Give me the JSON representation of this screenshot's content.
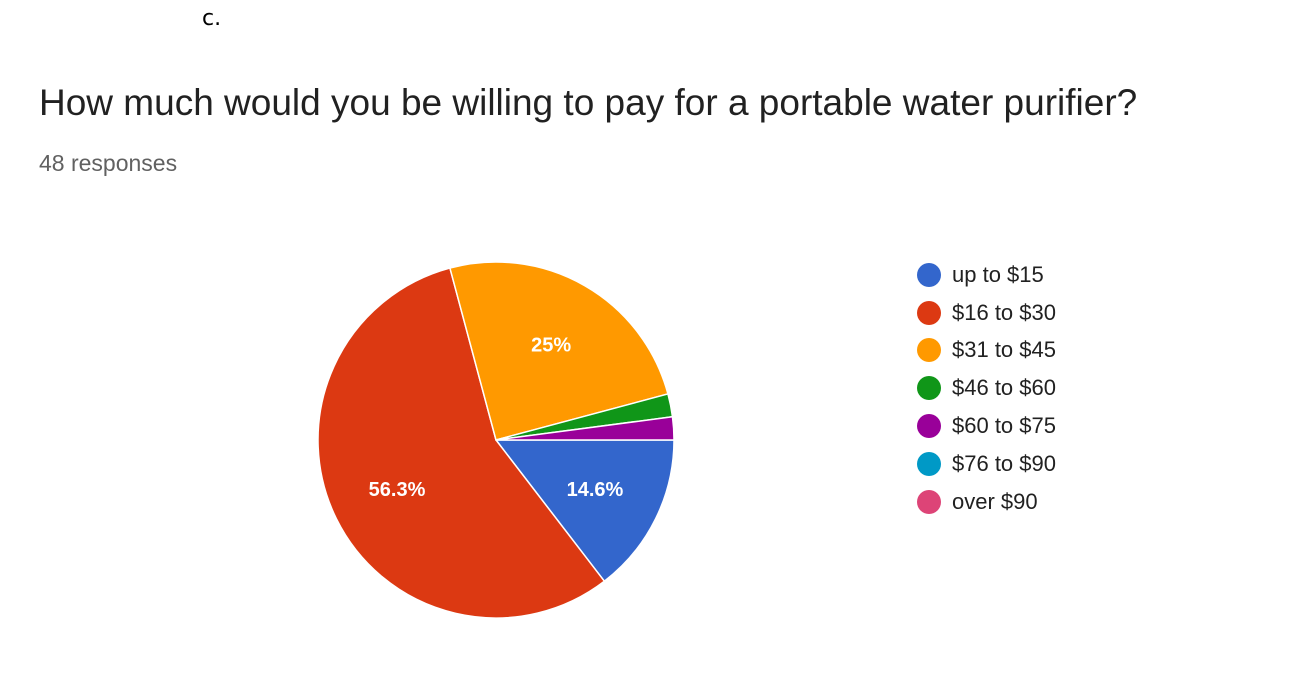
{
  "header": {
    "prefix": "c.",
    "title": "How much would you be willing to pay for a portable water purifier?",
    "responses": "48 responses"
  },
  "chart_data": {
    "type": "pie",
    "title": "How much would you be willing to pay for a portable water purifier?",
    "total_responses": 48,
    "legend_position": "right",
    "slices": [
      {
        "label": "up to $15",
        "value": 7,
        "percent_label": "14.6%",
        "color": "#3366cc"
      },
      {
        "label": "$16 to $30",
        "value": 27,
        "percent_label": "56.3%",
        "color": "#dc3912"
      },
      {
        "label": "$31 to $45",
        "value": 12,
        "percent_label": "25%",
        "color": "#ff9900"
      },
      {
        "label": "$46 to $60",
        "value": 1,
        "percent_label": "",
        "color": "#109618"
      },
      {
        "label": "$60 to $75",
        "value": 1,
        "percent_label": "",
        "color": "#990099"
      },
      {
        "label": "$76 to $90",
        "value": 0,
        "percent_label": "",
        "color": "#0099c6"
      },
      {
        "label": "over $90",
        "value": 0,
        "percent_label": "",
        "color": "#dd4477"
      }
    ]
  }
}
